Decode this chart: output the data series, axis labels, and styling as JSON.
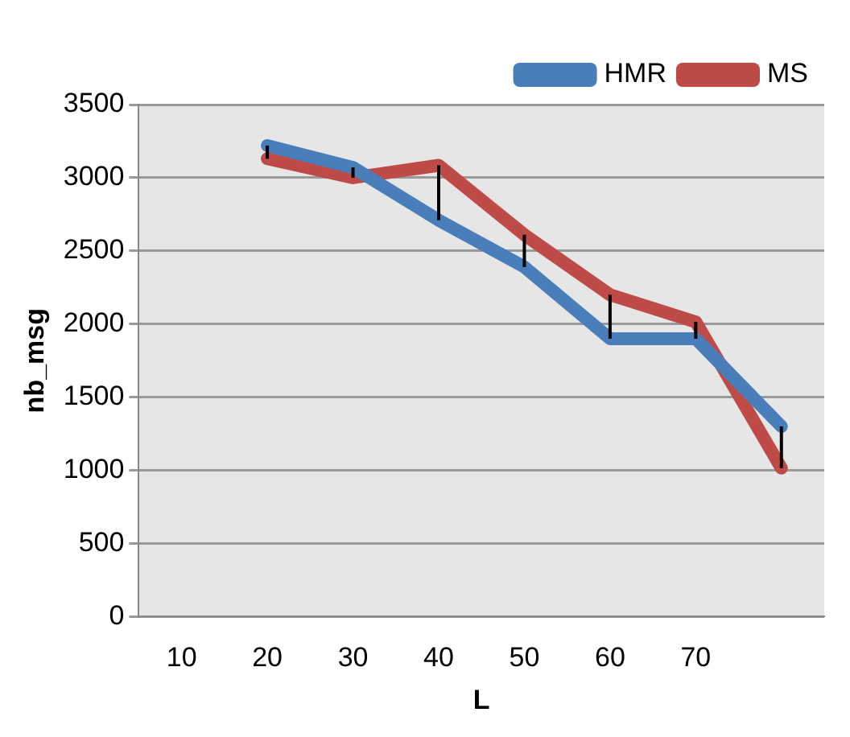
{
  "chart_data": {
    "type": "line",
    "xlabel": "L",
    "ylabel": "nb_msg",
    "categories": [
      "10",
      "20",
      "30",
      "40",
      "50",
      "60",
      "70",
      null
    ],
    "series": [
      {
        "name": "HMR",
        "color": "#4a7ebb",
        "values": [
          null,
          3220,
          3070,
          2710,
          2390,
          1900,
          1900,
          1300
        ]
      },
      {
        "name": "MS",
        "color": "#be4b48",
        "values": [
          null,
          3130,
          3000,
          3085,
          2610,
          2200,
          2015,
          1015
        ],
        "errors": [
          null,
          [
            3130,
            3220
          ],
          [
            3000,
            3070
          ],
          [
            2710,
            3085
          ],
          [
            2390,
            2610
          ],
          [
            1900,
            2200
          ],
          [
            1900,
            2015
          ],
          [
            1015,
            1300
          ]
        ]
      }
    ],
    "ylim": [
      0,
      3500
    ],
    "yticks": [
      0,
      500,
      1000,
      1500,
      2000,
      2500,
      3000,
      3500
    ],
    "grid": "y",
    "legend": "top right",
    "marker": "none",
    "line_style": "solid"
  }
}
